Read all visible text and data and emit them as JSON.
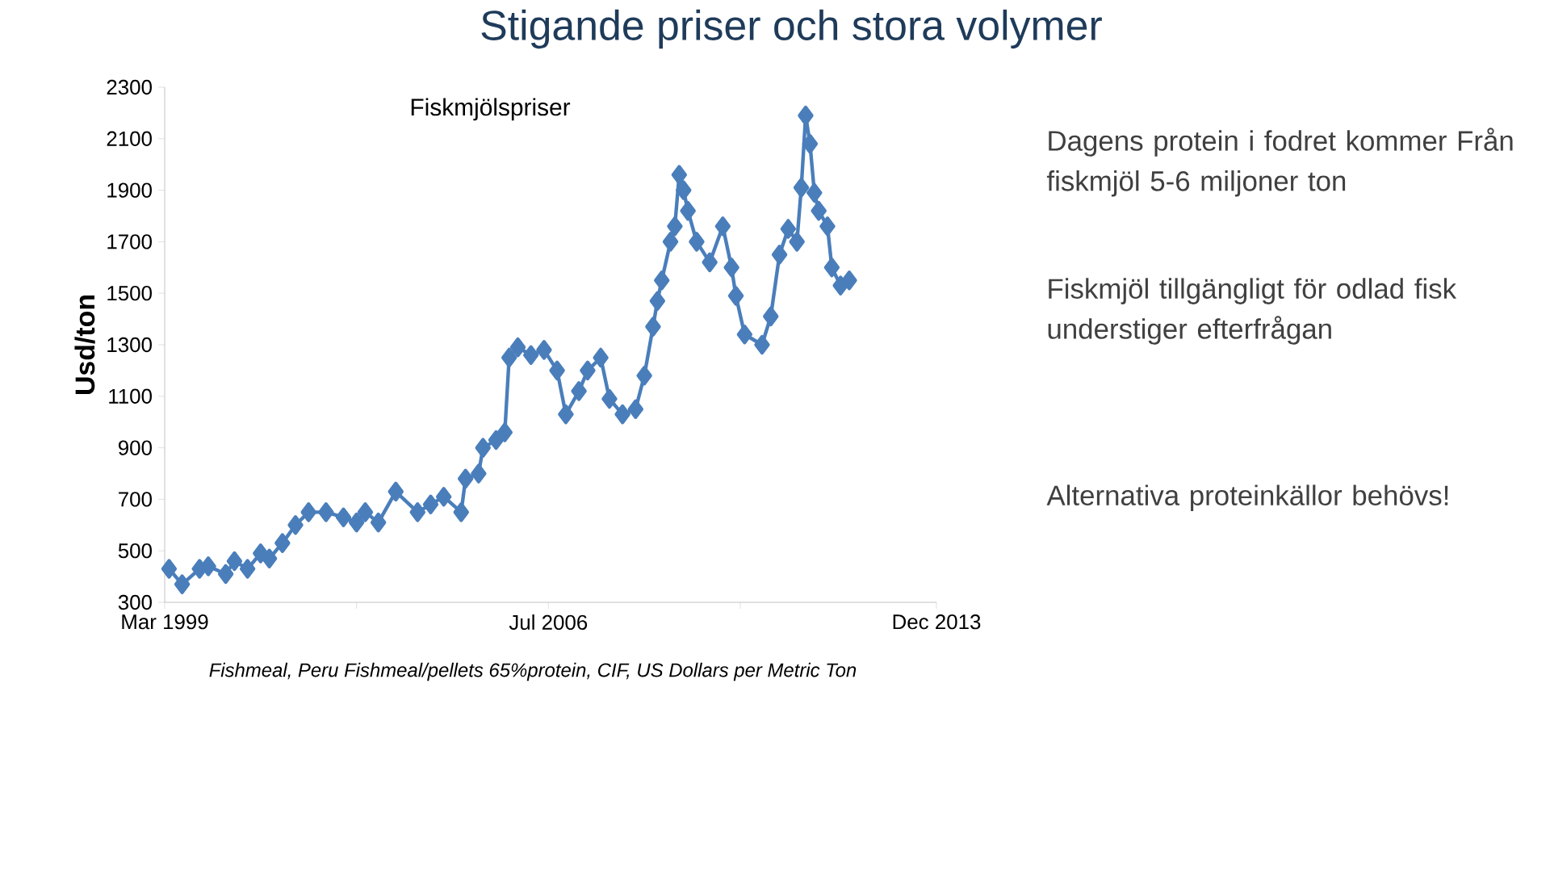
{
  "chart_data": {
    "type": "line",
    "title": "Stigande priser och stora volymer",
    "subtitle": "Fiskmjölspriser",
    "ylabel": "Usd/ton",
    "x": [
      "1999-04",
      "1999-07",
      "1999-11",
      "2000-01",
      "2000-05",
      "2000-07",
      "2000-10",
      "2001-01",
      "2001-03",
      "2001-06",
      "2001-09",
      "2001-12",
      "2002-04",
      "2002-08",
      "2002-11",
      "2003-01",
      "2003-04",
      "2003-08",
      "2004-01",
      "2004-04",
      "2004-07",
      "2004-11",
      "2004-12",
      "2005-03",
      "2005-04",
      "2005-07",
      "2005-09",
      "2005-10",
      "2005-12",
      "2006-03",
      "2006-06",
      "2006-09",
      "2006-11",
      "2007-02",
      "2007-04",
      "2007-07",
      "2007-09",
      "2007-12",
      "2008-03",
      "2008-05",
      "2008-07",
      "2008-08",
      "2008-09",
      "2008-11",
      "2008-12",
      "2009-01",
      "2009-02",
      "2009-03",
      "2009-05",
      "2009-08",
      "2009-11",
      "2010-01",
      "2010-02",
      "2010-04",
      "2010-08",
      "2010-10",
      "2010-12",
      "2011-02",
      "2011-04",
      "2011-05",
      "2011-06",
      "2011-07",
      "2011-08",
      "2011-09",
      "2011-11",
      "2011-12",
      "2012-02",
      "2012-04"
    ],
    "values": [
      430,
      370,
      430,
      440,
      410,
      460,
      430,
      490,
      470,
      530,
      600,
      650,
      650,
      630,
      610,
      650,
      610,
      730,
      650,
      680,
      710,
      650,
      780,
      800,
      900,
      930,
      960,
      1250,
      1290,
      1260,
      1280,
      1200,
      1030,
      1120,
      1200,
      1250,
      1090,
      1030,
      1050,
      1180,
      1370,
      1470,
      1550,
      1700,
      1760,
      1960,
      1900,
      1820,
      1700,
      1620,
      1760,
      1600,
      1490,
      1340,
      1300,
      1410,
      1650,
      1750,
      1700,
      1910,
      2190,
      2080,
      1890,
      1820,
      1760,
      1600,
      1530,
      1550
    ],
    "color": "#4a7ebb",
    "marker": "diamond",
    "xlim": [
      "1999-03",
      "2013-12"
    ],
    "xticks": [
      {
        "value": "1999-03",
        "label": "Mar 1999"
      },
      {
        "value": "2002-11",
        "label": null
      },
      {
        "value": "2006-07",
        "label": "Jul 2006"
      },
      {
        "value": "2010-03",
        "label": null
      },
      {
        "value": "2013-12",
        "label": "Dec 2013"
      }
    ],
    "ylim": [
      300,
      2300
    ],
    "yticks": [
      300,
      500,
      700,
      900,
      1100,
      1300,
      1500,
      1700,
      1900,
      2100,
      2300
    ],
    "annotations": [
      "Fishmeal, Peru Fishmeal/pellets 65%protein, CIF, US Dollars per Metric Ton",
      "Dagens protein i fodret kommer Från fiskmjöl 5-6 miljoner ton",
      "Fiskmjöl tillgängligt för odlad fisk understiger efterfrågan",
      "Alternativa proteinkällor behövs!"
    ]
  }
}
